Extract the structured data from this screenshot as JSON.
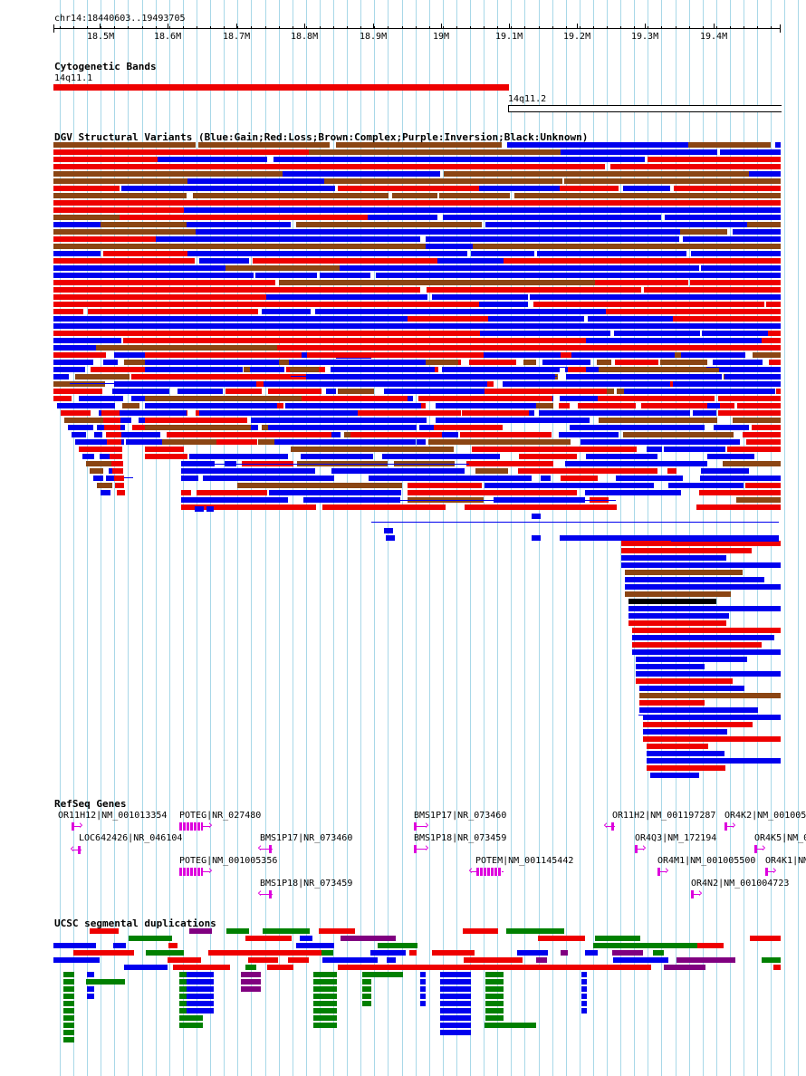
{
  "ruler": {
    "range_label": "chr14:18440603..19493705",
    "start": 18440603,
    "end": 19493705,
    "ticks": [
      "18.5M",
      "18.6M",
      "18.7M",
      "18.8M",
      "18.9M",
      "19M",
      "19.1M",
      "19.2M",
      "19.3M",
      "19.4M"
    ]
  },
  "tracks": {
    "cytobands": {
      "title": "Cytogenetic Bands",
      "bands": [
        {
          "name": "14q11.1",
          "start": 18440603,
          "end": 19100000,
          "style": "red"
        },
        {
          "name": "14q11.2",
          "start": 19100000,
          "end": 19493705,
          "style": "open"
        }
      ]
    },
    "dgv": {
      "title": "DGV Structural Variants (Blue:Gain;Red:Loss;Brown:Complex;Purple:Inversion;Black:Unknown)"
    },
    "refseq": {
      "title": "RefSeq Genes",
      "genes": [
        {
          "label": "OR11H12|NM_001013354",
          "dir": "+"
        },
        {
          "label": "LOC642426|NR_046104",
          "dir": "-"
        },
        {
          "label": "POTEG|NR_027480",
          "dir": "+"
        },
        {
          "label": "POTEG|NM_001005356",
          "dir": "+"
        },
        {
          "label": "BMS1P17|NR_073460",
          "dir": "-"
        },
        {
          "label": "BMS1P18|NR_073459",
          "dir": "-"
        },
        {
          "label": "BMS1P17|NR_073460",
          "dir": "+"
        },
        {
          "label": "BMS1P18|NR_073459",
          "dir": "+"
        },
        {
          "label": "POTEM|NM_001145442",
          "dir": "-"
        },
        {
          "label": "OR11H2|NM_001197287",
          "dir": "-"
        },
        {
          "label": "OR4Q3|NM_172194",
          "dir": "+"
        },
        {
          "label": "OR4M1|NM_001005500",
          "dir": "+"
        },
        {
          "label": "OR4N2|NM_001004723",
          "dir": "+"
        },
        {
          "label": "OR4K2|NM_001005",
          "dir": "+"
        },
        {
          "label": "OR4K5|NM_0",
          "dir": "+"
        },
        {
          "label": "OR4K1|NM",
          "dir": "+"
        }
      ]
    },
    "segdups": {
      "title": "UCSC segmental duplications"
    }
  },
  "colors": {
    "gain": "#0000ee",
    "loss": "#ee0000",
    "complex": "#8b4513",
    "unknown": "#000000",
    "gene": "#dd00dd",
    "segdup_green": "#008000",
    "segdup_purple": "#800080",
    "grid": "#a8d8e8"
  }
}
